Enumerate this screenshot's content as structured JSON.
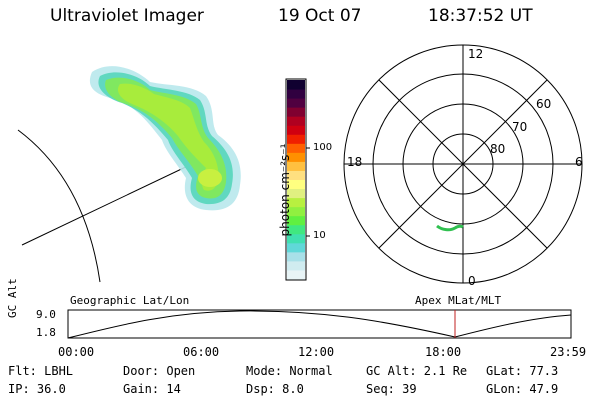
{
  "header": {
    "title": "Ultraviolet Imager",
    "date": "19 Oct 07",
    "time": "18:37:52 UT"
  },
  "colorbar": {
    "unit_label": "photon cm⁻²s⁻¹",
    "tick_100": "100",
    "tick_10": "10",
    "colors": [
      "#e8f4f6",
      "#d0ecf0",
      "#a8e0e8",
      "#60d8d8",
      "#40e0b0",
      "#40e880",
      "#60f040",
      "#90f040",
      "#b8f040",
      "#e0f080",
      "#ffff80",
      "#ffe080",
      "#ffc040",
      "#ff9000",
      "#ff6000",
      "#f02000",
      "#d00010",
      "#b00020",
      "#800030",
      "#500040",
      "#300040",
      "#100030"
    ]
  },
  "polar": {
    "labels": {
      "top": "12",
      "bottom": "0",
      "left": "18",
      "right": "6",
      "r60": "60",
      "r70": "70",
      "r80": "80"
    }
  },
  "timeline": {
    "left_title": "Geographic Lat/Lon",
    "right_title": "Apex MLat/MLT",
    "y_axis": "GC Alt",
    "y_max": "9.0",
    "y_min": "1.8",
    "ticks": [
      "00:00",
      "06:00",
      "12:00",
      "18:00",
      "23:59"
    ],
    "marker_color": "#c02020"
  },
  "footer": {
    "flt": "Flt: LBHL",
    "ip": "IP: 36.0",
    "door": "Door: Open",
    "gain": "Gain: 14",
    "mode": "Mode: Normal",
    "dsp": "Dsp:    8.0",
    "gcalt": "GC Alt: 2.1 Re",
    "seq": "Seq: 39",
    "glat": "GLat:  77.3",
    "glon": "GLon:  47.9"
  }
}
